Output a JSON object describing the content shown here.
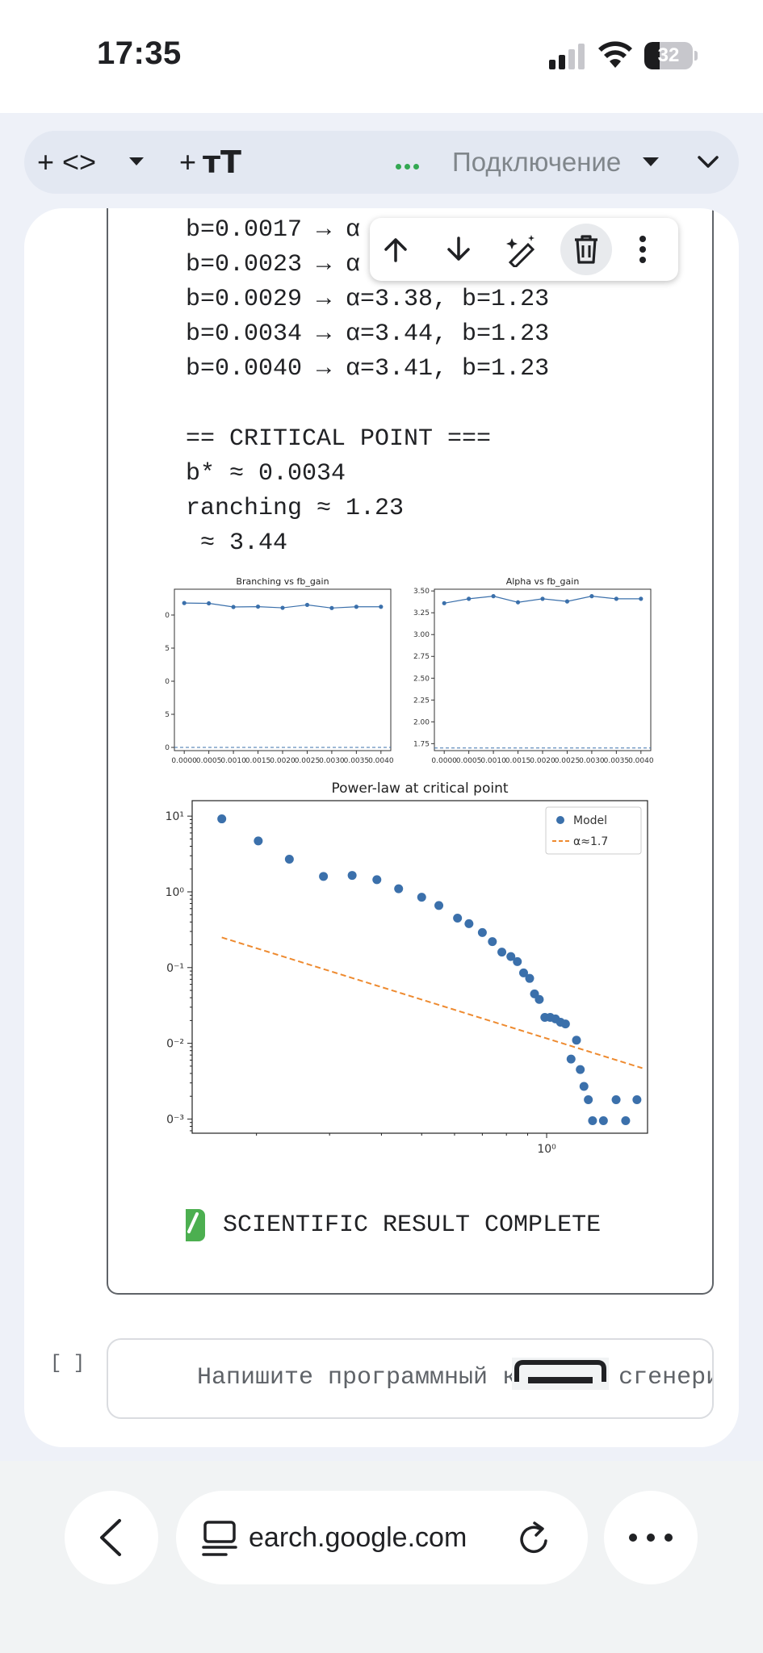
{
  "status_bar": {
    "time": "17:35",
    "battery_level": "32",
    "battery_fraction": 0.32
  },
  "toolbar": {
    "add_code_label": "+ <>",
    "add_text_label": "+",
    "text_icon": "тТ",
    "connection_label": "Подключение"
  },
  "output": {
    "lines": [
      "b=0.0017 → α",
      "b=0.0023 → α",
      "b=0.0029 → α=3.38, b=1.23",
      "b=0.0034 → α=3.44, b=1.23",
      "b=0.0040 → α=3.41, b=1.23"
    ],
    "critical_header": "== CRITICAL POINT ===",
    "critical_lines": [
      "b* ≈ 0.0034",
      "ranching ≈ 1.23",
      " ≈ 3.44"
    ],
    "result_text": "SCIENTIFIC RESULT COMPLETE"
  },
  "chart_data": [
    {
      "type": "line",
      "title": "Branching vs fb_gain",
      "x": [
        0.0,
        0.0005,
        0.001,
        0.0015,
        0.002,
        0.0025,
        0.003,
        0.0035,
        0.004
      ],
      "x_tick_labels": [
        "0.0000",
        "0.0005",
        "0.0010",
        "0.0015",
        "0.0020",
        "0.0025",
        "0.0030",
        "0.0035",
        "0.0040"
      ],
      "y_tick_labels": [
        "0",
        "5",
        "0",
        "5",
        "0"
      ],
      "values": [
        1.262,
        1.259,
        1.228,
        1.231,
        1.221,
        1.246,
        1.219,
        1.23,
        1.23
      ],
      "reference_line": "dashed",
      "ylim": [
        0,
        1.38
      ]
    },
    {
      "type": "line",
      "title": "Alpha vs fb_gain",
      "x": [
        0.0,
        0.0005,
        0.001,
        0.0015,
        0.002,
        0.0025,
        0.003,
        0.0035,
        0.004
      ],
      "x_tick_labels": [
        "0.0000",
        "0.0005",
        "0.0010",
        "0.0015",
        "0.0020",
        "0.0025",
        "0.0030",
        "0.0035",
        "0.0040"
      ],
      "y_ticks": [
        1.75,
        2.0,
        2.25,
        2.5,
        2.75,
        3.0,
        3.25,
        3.5
      ],
      "y_tick_labels": [
        "1.75",
        "2.00",
        "2.25",
        "2.50",
        "2.75",
        "3.00",
        "3.25",
        "3.50"
      ],
      "values": [
        3.36,
        3.41,
        3.44,
        3.37,
        3.41,
        3.38,
        3.44,
        3.41,
        3.41
      ],
      "reference_value": 1.7,
      "ylim": [
        1.67,
        3.52
      ]
    },
    {
      "type": "scatter",
      "title": "Power-law at critical point",
      "xscale": "log",
      "yscale": "log",
      "xlim": [
        0.14,
        1.75
      ],
      "ylim": [
        0.00065,
        16
      ],
      "x_ticks": [
        1
      ],
      "x_tick_labels": [
        "10⁰"
      ],
      "y_ticks": [
        10,
        1,
        0.1,
        0.01,
        0.001
      ],
      "y_tick_labels": [
        "10¹",
        "10⁰",
        "0⁻¹",
        "0⁻²",
        "0⁻³"
      ],
      "legend_position": "top-right",
      "series": [
        {
          "name": "Model",
          "color": "#3b70ab",
          "x": [
            0.165,
            0.202,
            0.24,
            0.29,
            0.34,
            0.39,
            0.44,
            0.5,
            0.55,
            0.61,
            0.65,
            0.7,
            0.74,
            0.78,
            0.82,
            0.85,
            0.88,
            0.91,
            0.935,
            0.96,
            0.99,
            1.02,
            1.05,
            1.08,
            1.11,
            1.145,
            1.18,
            1.205,
            1.23,
            1.26,
            1.29,
            1.37,
            1.47,
            1.55,
            1.65
          ],
          "y": [
            9.2,
            4.7,
            2.7,
            1.6,
            1.65,
            1.45,
            1.1,
            0.85,
            0.66,
            0.45,
            0.38,
            0.29,
            0.22,
            0.16,
            0.14,
            0.12,
            0.085,
            0.072,
            0.045,
            0.038,
            0.022,
            0.022,
            0.021,
            0.019,
            0.018,
            0.0062,
            0.011,
            0.0045,
            0.0027,
            0.0018,
            0.00095,
            0.00095,
            0.0018,
            0.00095,
            0.0018
          ]
        },
        {
          "name": "α≈1.7",
          "color": "#ee8a2f",
          "line": "dashed",
          "x": [
            0.165,
            1.7
          ],
          "y": [
            0.25,
            0.0047
          ]
        }
      ]
    }
  ],
  "input_cell": {
    "bracket": "[ ]",
    "placeholder": "Напишите программный код или сгенерируйте его с помощью"
  },
  "browser": {
    "url": "earch.google.com"
  }
}
